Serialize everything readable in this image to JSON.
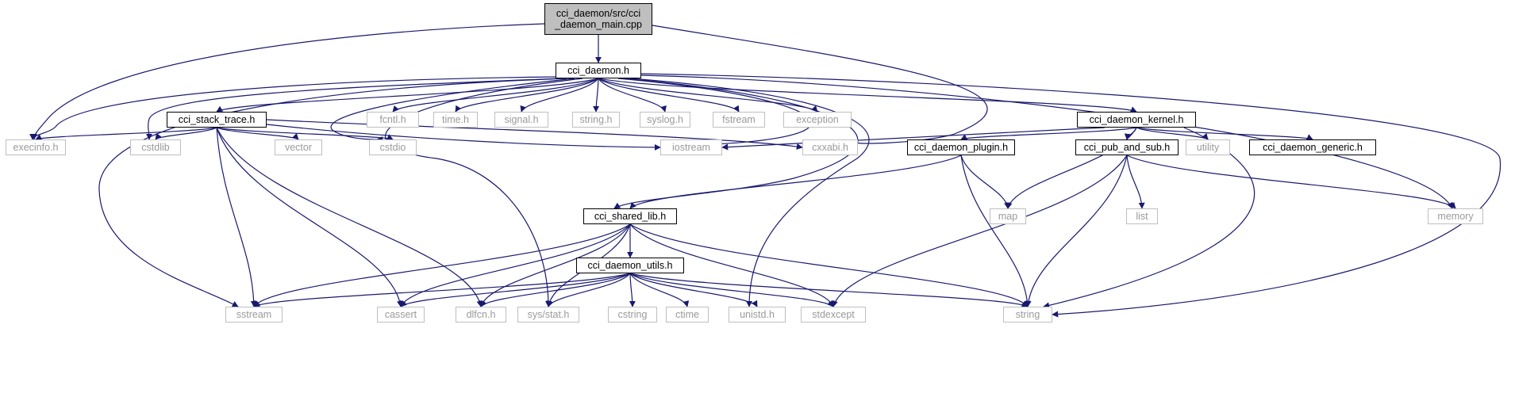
{
  "diagram": {
    "type": "include-dependency-graph",
    "colors": {
      "edge": "#191970",
      "local_border": "#000000",
      "system_border": "#bfbfbf",
      "system_text": "#9a9a9a",
      "main_fill": "#bfbfbf"
    },
    "nodes": [
      {
        "id": "main",
        "label": "cci_daemon/src/cci\n_daemon_main.cpp",
        "kind": "main"
      },
      {
        "id": "cci_daemon",
        "label": "cci_daemon.h",
        "kind": "local"
      },
      {
        "id": "cci_stack_trace",
        "label": "cci_stack_trace.h",
        "kind": "local"
      },
      {
        "id": "fcntl",
        "label": "fcntl.h",
        "kind": "system"
      },
      {
        "id": "time",
        "label": "time.h",
        "kind": "system"
      },
      {
        "id": "signal",
        "label": "signal.h",
        "kind": "system"
      },
      {
        "id": "string_h",
        "label": "string.h",
        "kind": "system"
      },
      {
        "id": "syslog",
        "label": "syslog.h",
        "kind": "system"
      },
      {
        "id": "fstream",
        "label": "fstream",
        "kind": "system"
      },
      {
        "id": "exception",
        "label": "exception",
        "kind": "system"
      },
      {
        "id": "kernel",
        "label": "cci_daemon_kernel.h",
        "kind": "local"
      },
      {
        "id": "execinfo",
        "label": "execinfo.h",
        "kind": "system"
      },
      {
        "id": "cstdlib",
        "label": "cstdlib",
        "kind": "system"
      },
      {
        "id": "vector",
        "label": "vector",
        "kind": "system"
      },
      {
        "id": "cstdio",
        "label": "cstdio",
        "kind": "system"
      },
      {
        "id": "iostream",
        "label": "iostream",
        "kind": "system"
      },
      {
        "id": "cxxabi",
        "label": "cxxabi.h",
        "kind": "system"
      },
      {
        "id": "plugin",
        "label": "cci_daemon_plugin.h",
        "kind": "local"
      },
      {
        "id": "pubsub",
        "label": "cci_pub_and_sub.h",
        "kind": "local"
      },
      {
        "id": "utility",
        "label": "utility",
        "kind": "system"
      },
      {
        "id": "generic",
        "label": "cci_daemon_generic.h",
        "kind": "local"
      },
      {
        "id": "shared_lib",
        "label": "cci_shared_lib.h",
        "kind": "local"
      },
      {
        "id": "map",
        "label": "map",
        "kind": "system"
      },
      {
        "id": "list",
        "label": "list",
        "kind": "system"
      },
      {
        "id": "memory",
        "label": "memory",
        "kind": "system"
      },
      {
        "id": "utils",
        "label": "cci_daemon_utils.h",
        "kind": "local"
      },
      {
        "id": "sstream",
        "label": "sstream",
        "kind": "system"
      },
      {
        "id": "cassert",
        "label": "cassert",
        "kind": "system"
      },
      {
        "id": "dlfcn",
        "label": "dlfcn.h",
        "kind": "system"
      },
      {
        "id": "sysstat",
        "label": "sys/stat.h",
        "kind": "system"
      },
      {
        "id": "cstring",
        "label": "cstring",
        "kind": "system"
      },
      {
        "id": "ctime",
        "label": "ctime",
        "kind": "system"
      },
      {
        "id": "unistd",
        "label": "unistd.h",
        "kind": "system"
      },
      {
        "id": "stdexcept",
        "label": "stdexcept",
        "kind": "system"
      },
      {
        "id": "string",
        "label": "string",
        "kind": "system"
      }
    ],
    "edges": [
      [
        "main",
        "cci_daemon"
      ],
      [
        "main",
        "execinfo"
      ],
      [
        "main",
        "cxxabi"
      ],
      [
        "cci_daemon",
        "cci_stack_trace"
      ],
      [
        "cci_daemon",
        "fcntl"
      ],
      [
        "cci_daemon",
        "time"
      ],
      [
        "cci_daemon",
        "signal"
      ],
      [
        "cci_daemon",
        "string_h"
      ],
      [
        "cci_daemon",
        "syslog"
      ],
      [
        "cci_daemon",
        "fstream"
      ],
      [
        "cci_daemon",
        "exception"
      ],
      [
        "cci_daemon",
        "kernel"
      ],
      [
        "cci_daemon",
        "execinfo"
      ],
      [
        "cci_daemon",
        "cstdlib"
      ],
      [
        "cci_daemon",
        "cstdio"
      ],
      [
        "cci_daemon",
        "iostream"
      ],
      [
        "cci_daemon",
        "sstream"
      ],
      [
        "cci_daemon",
        "sysstat"
      ],
      [
        "cci_daemon",
        "unistd"
      ],
      [
        "cci_daemon",
        "shared_lib"
      ],
      [
        "cci_daemon",
        "memory"
      ],
      [
        "cci_daemon",
        "string"
      ],
      [
        "cci_stack_trace",
        "execinfo"
      ],
      [
        "cci_stack_trace",
        "cstdlib"
      ],
      [
        "cci_stack_trace",
        "vector"
      ],
      [
        "cci_stack_trace",
        "cstdio"
      ],
      [
        "cci_stack_trace",
        "iostream"
      ],
      [
        "cci_stack_trace",
        "cxxabi"
      ],
      [
        "cci_stack_trace",
        "sstream"
      ],
      [
        "cci_stack_trace",
        "cassert"
      ],
      [
        "cci_stack_trace",
        "dlfcn"
      ],
      [
        "kernel",
        "iostream"
      ],
      [
        "kernel",
        "plugin"
      ],
      [
        "kernel",
        "pubsub"
      ],
      [
        "kernel",
        "utility"
      ],
      [
        "kernel",
        "generic"
      ],
      [
        "kernel",
        "map"
      ],
      [
        "kernel",
        "string"
      ],
      [
        "plugin",
        "shared_lib"
      ],
      [
        "plugin",
        "map"
      ],
      [
        "plugin",
        "string"
      ],
      [
        "pubsub",
        "list"
      ],
      [
        "pubsub",
        "memory"
      ],
      [
        "pubsub",
        "stdexcept"
      ],
      [
        "pubsub",
        "string"
      ],
      [
        "shared_lib",
        "utils"
      ],
      [
        "shared_lib",
        "sstream"
      ],
      [
        "shared_lib",
        "cassert"
      ],
      [
        "shared_lib",
        "dlfcn"
      ],
      [
        "shared_lib",
        "sysstat"
      ],
      [
        "shared_lib",
        "stdexcept"
      ],
      [
        "shared_lib",
        "string"
      ],
      [
        "utils",
        "sstream"
      ],
      [
        "utils",
        "cassert"
      ],
      [
        "utils",
        "dlfcn"
      ],
      [
        "utils",
        "sysstat"
      ],
      [
        "utils",
        "cstring"
      ],
      [
        "utils",
        "ctime"
      ],
      [
        "utils",
        "unistd"
      ],
      [
        "utils",
        "stdexcept"
      ],
      [
        "utils",
        "string"
      ]
    ]
  }
}
